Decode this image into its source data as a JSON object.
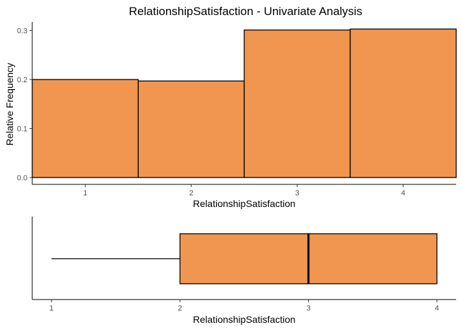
{
  "chart_data": [
    {
      "type": "bar",
      "title": "RelationshipSatisfaction - Univariate Analysis",
      "xlabel": "RelationshipSatisfaction",
      "ylabel": "Relative Frequency",
      "categories": [
        1,
        2,
        3,
        4
      ],
      "values": [
        0.2,
        0.197,
        0.301,
        0.303
      ],
      "x_ticks": [
        "1",
        "2",
        "3",
        "4"
      ],
      "y_ticks": [
        "0.0",
        "0.1",
        "0.2",
        "0.3"
      ],
      "xlim": [
        0.5,
        4.5
      ],
      "ylim": [
        0,
        0.31
      ],
      "fill": "#F09651",
      "grid": false
    },
    {
      "type": "boxplot",
      "xlabel": "RelationshipSatisfaction",
      "min": 1,
      "q1": 2,
      "median": 3,
      "q3": 4,
      "max": 4,
      "x_ticks": [
        "1",
        "2",
        "3",
        "4"
      ],
      "xlim": [
        0.85,
        4.15
      ],
      "fill": "#F09651",
      "grid": false
    }
  ]
}
